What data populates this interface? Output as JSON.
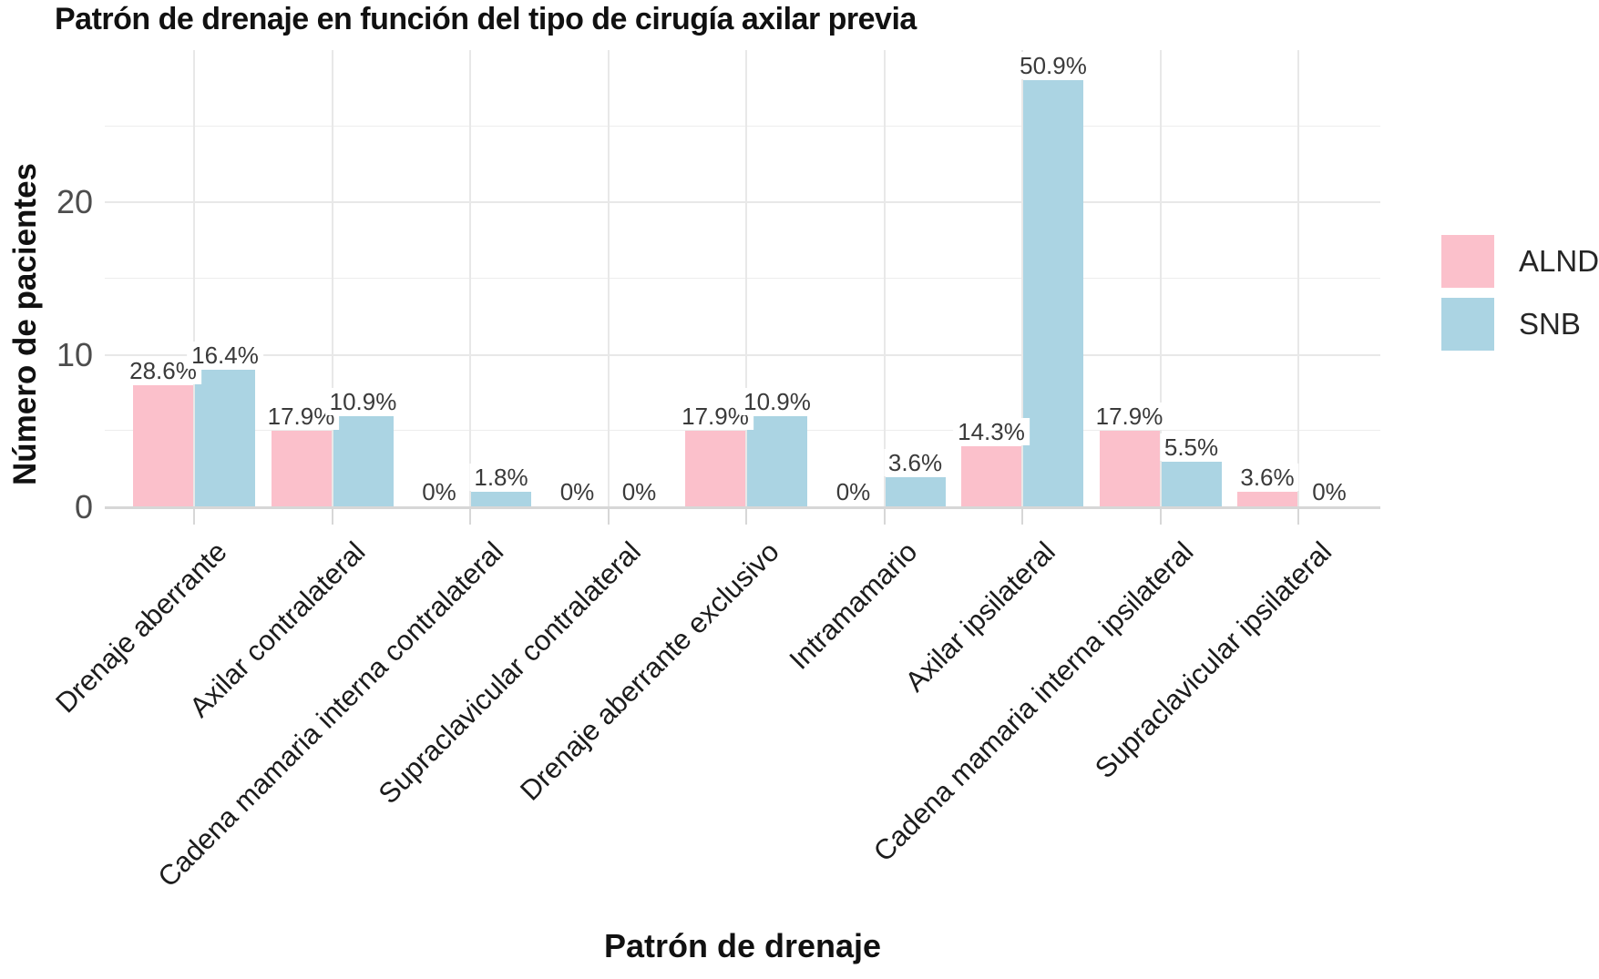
{
  "chart_data": {
    "type": "bar",
    "title": "Patrón de drenaje en función del tipo de cirugía axilar previa",
    "xlabel": "Patrón de drenaje",
    "ylabel": "Número de pacientes",
    "categories": [
      "Drenaje aberrante",
      "Axilar contralateral",
      "Cadena mamaria interna contralateral",
      "Supraclavicular contralateral",
      "Drenaje aberrante exclusivo",
      "Intramamario",
      "Axilar ipsilateral",
      "Cadena mamaria interna ipsilateral",
      "Supraclavicular ipsilateral"
    ],
    "series": [
      {
        "name": "ALND",
        "color": "#FBC0CB",
        "values": [
          8,
          5,
          0,
          0,
          5,
          0,
          4,
          5,
          1
        ],
        "labels": [
          "28.6%",
          "17.9%",
          "0%",
          "0%",
          "17.9%",
          "0%",
          "14.3%",
          "17.9%",
          "3.6%"
        ]
      },
      {
        "name": "SNB",
        "color": "#ABD4E3",
        "values": [
          9,
          6,
          1,
          0,
          6,
          2,
          28,
          3,
          0
        ],
        "labels": [
          "16.4%",
          "10.9%",
          "1.8%",
          "0%",
          "10.9%",
          "3.6%",
          "50.9%",
          "5.5%",
          "0%"
        ]
      }
    ],
    "yticks": [
      0,
      10,
      20
    ],
    "yticks_minor": [
      5,
      15,
      25
    ],
    "ylim": [
      0,
      30
    ],
    "grid": true,
    "legend_position": "right",
    "bar_orientation": "vertical",
    "x_label_rotation_deg": -45
  }
}
